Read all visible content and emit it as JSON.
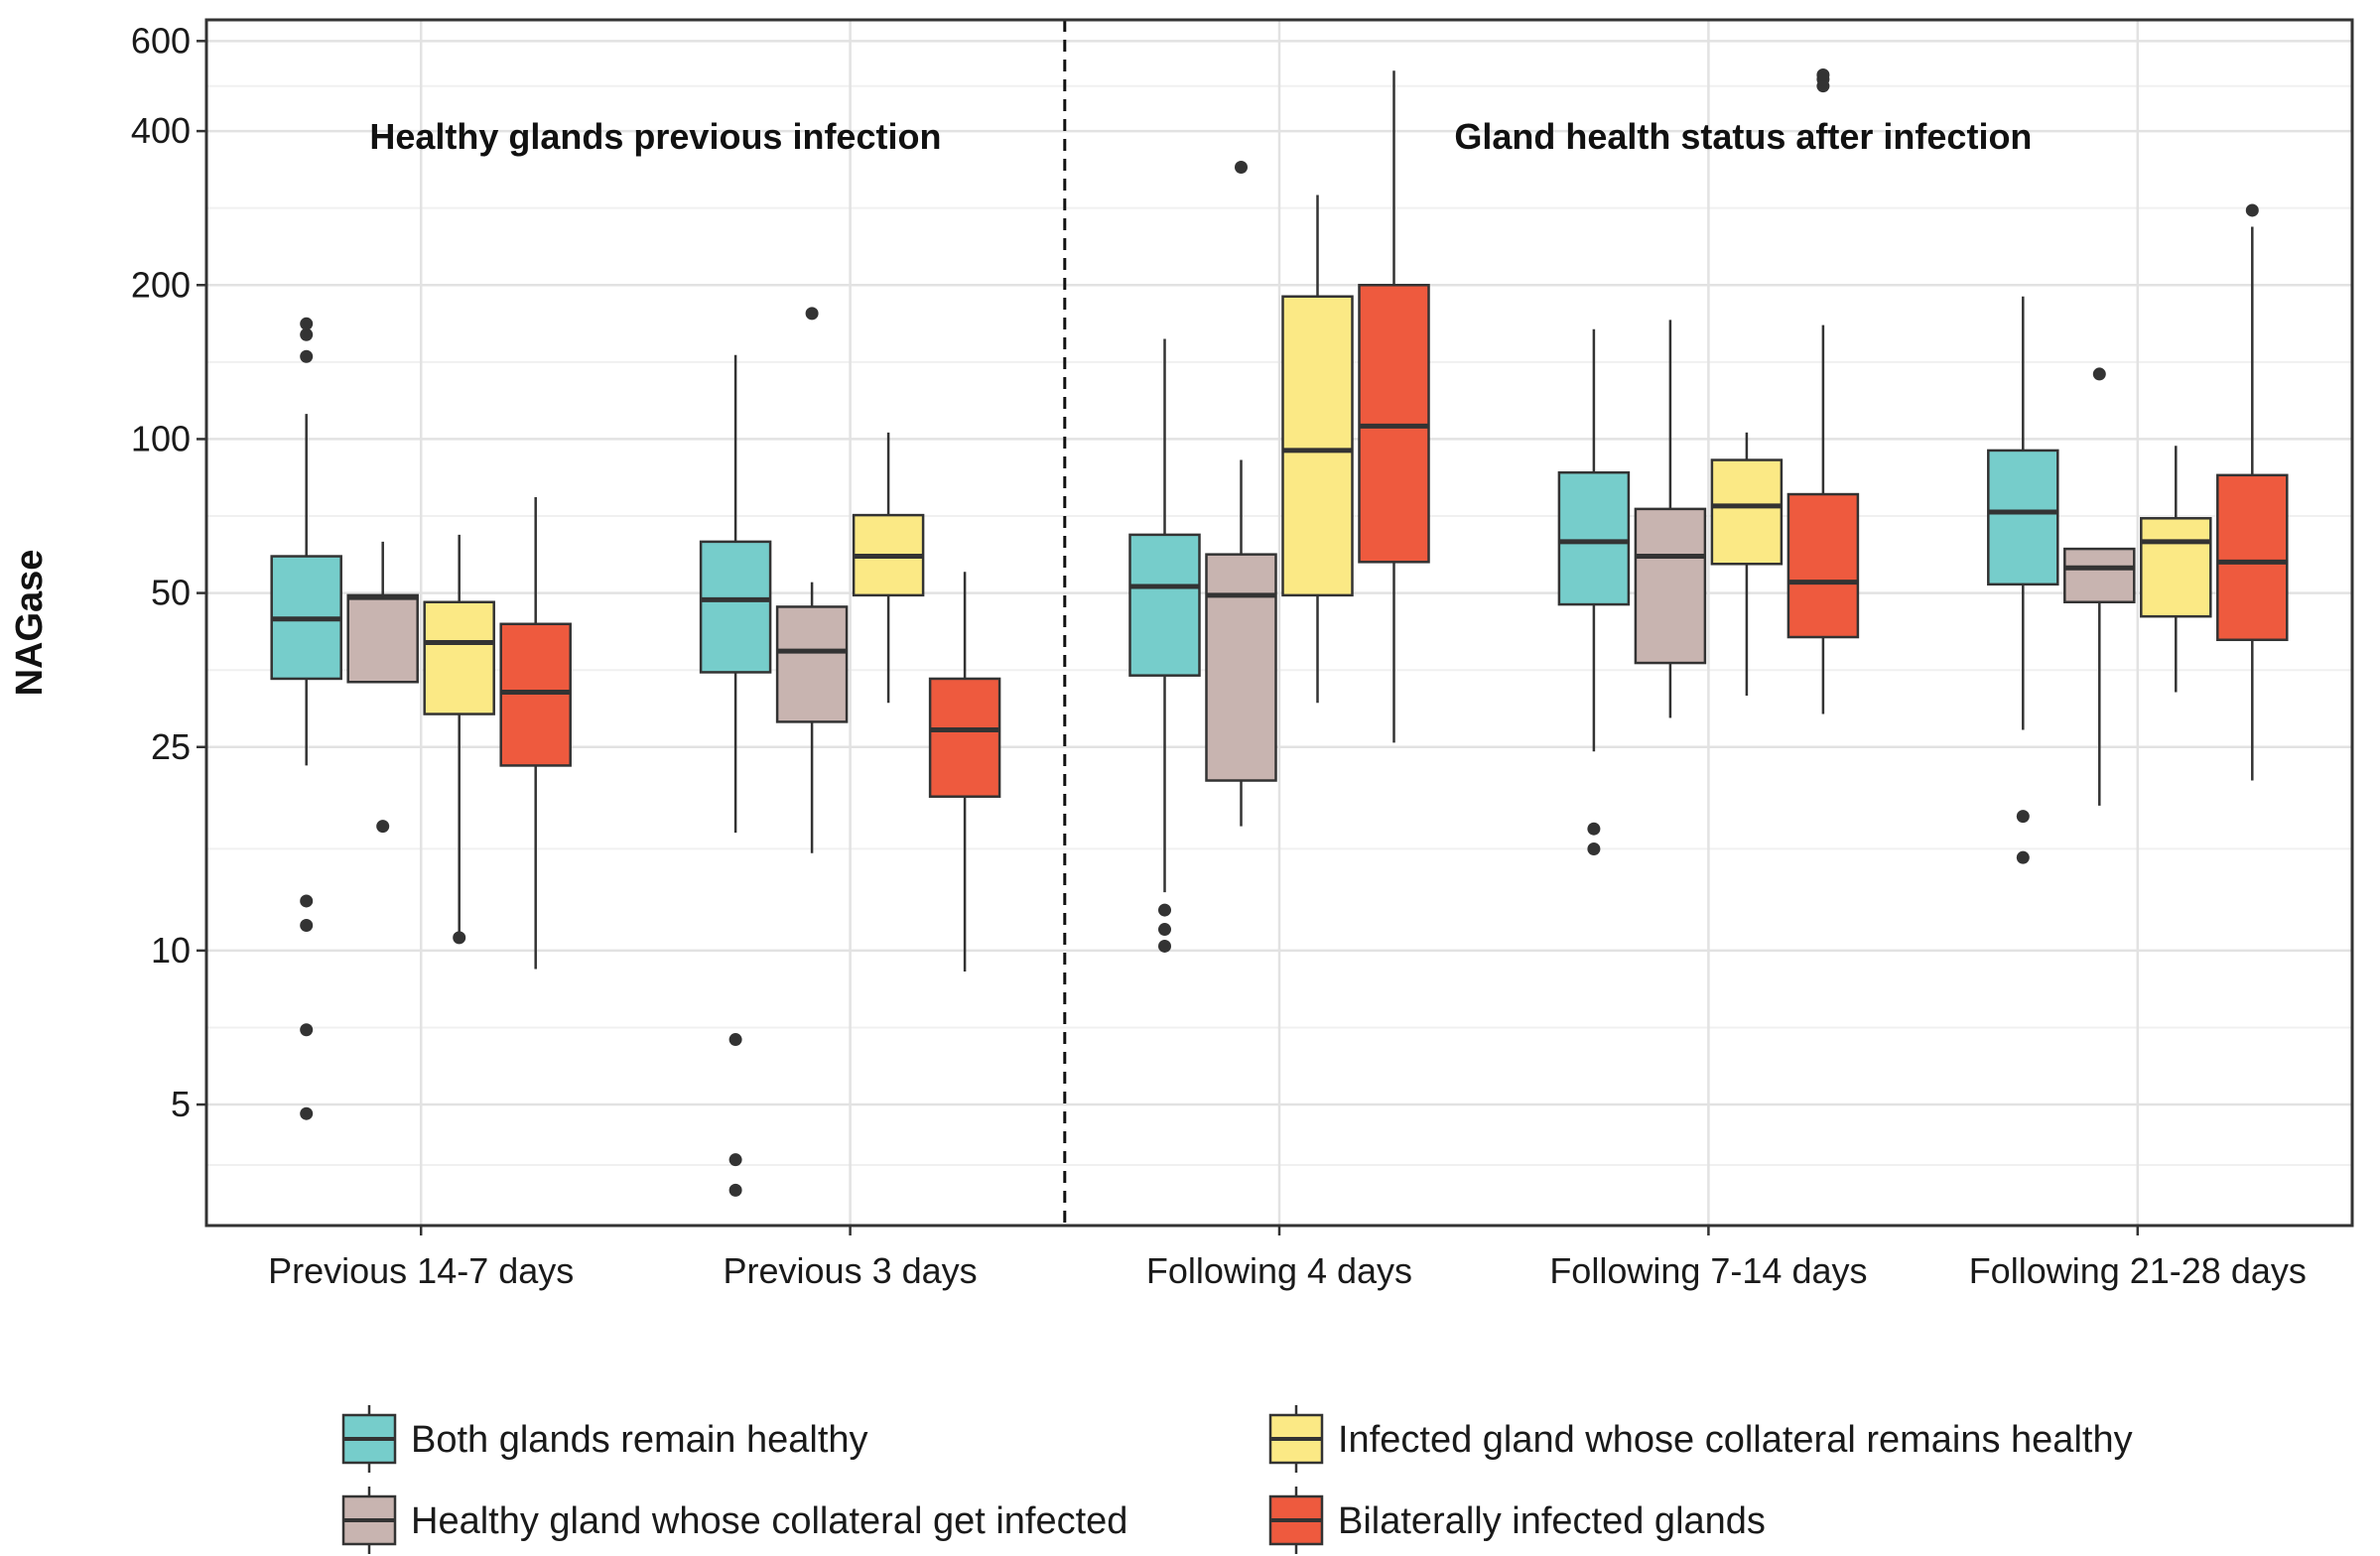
{
  "chart_data": {
    "type": "boxplot",
    "y_scale": "log",
    "ylabel": "NAGase",
    "xlabel": "",
    "ylim": [
      2.9,
      660
    ],
    "y_ticks": [
      5,
      10,
      25,
      50,
      100,
      200,
      400,
      600
    ],
    "grid": true,
    "categories": [
      "Previous 14-7 days",
      "Previous 3 days",
      "Following 4 days",
      "Following 7-14 days",
      "Following 21-28 days"
    ],
    "divider_after_category": 1,
    "annotations": [
      {
        "text": "Healthy glands previous infection",
        "side": "left"
      },
      {
        "text": "Gland health status after infection",
        "side": "right"
      }
    ],
    "legend_position": "bottom",
    "series": [
      {
        "name": "Both glands remain healthy",
        "color": "#76CDCB",
        "boxes": [
          {
            "whisker_low": 23,
            "q1": 34,
            "median": 44.5,
            "q3": 59,
            "whisker_high": 112,
            "outliers": [
              4.8,
              7,
              11.2,
              12.5,
              145,
              160,
              168
            ]
          },
          {
            "whisker_low": 17,
            "q1": 35,
            "median": 48.5,
            "q3": 63,
            "whisker_high": 146,
            "outliers": [
              3.4,
              3.9,
              6.7
            ]
          },
          {
            "whisker_low": 13,
            "q1": 34.5,
            "median": 51.5,
            "q3": 65,
            "whisker_high": 157,
            "outliers": [
              10.2,
              11,
              12
            ]
          },
          {
            "whisker_low": 24.5,
            "q1": 47.5,
            "median": 63,
            "q3": 86,
            "whisker_high": 164,
            "outliers": [
              15.8,
              17.3
            ]
          },
          {
            "whisker_low": 27,
            "q1": 52,
            "median": 72,
            "q3": 95,
            "whisker_high": 190,
            "outliers": [
              15.2,
              18.3
            ]
          }
        ]
      },
      {
        "name": "Healthy gland whose collateral get infected",
        "color": "#C8B4B0",
        "boxes": [
          {
            "whisker_low": 33.5,
            "q1": 33.5,
            "median": 49,
            "q3": 49.5,
            "whisker_high": 63,
            "outliers": [
              17.5
            ]
          },
          {
            "whisker_low": 15.5,
            "q1": 28,
            "median": 38.5,
            "q3": 47,
            "whisker_high": 52.5,
            "outliers": [
              176
            ]
          },
          {
            "whisker_low": 17.5,
            "q1": 21.5,
            "median": 49.5,
            "q3": 59.5,
            "whisker_high": 91,
            "outliers": [
              340
            ]
          },
          {
            "whisker_low": 28.5,
            "q1": 36.5,
            "median": 59,
            "q3": 73,
            "whisker_high": 171,
            "outliers": []
          },
          {
            "whisker_low": 19.2,
            "q1": 48,
            "median": 56,
            "q3": 61,
            "whisker_high": 61,
            "outliers": [
              134
            ]
          }
        ]
      },
      {
        "name": "Infected gland whose collateral remains healthy",
        "color": "#FBE985",
        "boxes": [
          {
            "whisker_low": 10.5,
            "q1": 29,
            "median": 40,
            "q3": 48,
            "whisker_high": 65,
            "outliers": [
              10.6
            ]
          },
          {
            "whisker_low": 30.5,
            "q1": 49.5,
            "median": 59,
            "q3": 71,
            "whisker_high": 103,
            "outliers": []
          },
          {
            "whisker_low": 30.5,
            "q1": 49.5,
            "median": 95,
            "q3": 190,
            "whisker_high": 300,
            "outliers": []
          },
          {
            "whisker_low": 31.5,
            "q1": 57,
            "median": 74,
            "q3": 91,
            "whisker_high": 103,
            "outliers": []
          },
          {
            "whisker_low": 32,
            "q1": 45,
            "median": 63,
            "q3": 70,
            "whisker_high": 97,
            "outliers": []
          }
        ]
      },
      {
        "name": "Bilaterally infected glands",
        "color": "#EE5A3E",
        "boxes": [
          {
            "whisker_low": 9.2,
            "q1": 23,
            "median": 32,
            "q3": 43.5,
            "whisker_high": 77,
            "outliers": []
          },
          {
            "whisker_low": 9.1,
            "q1": 20,
            "median": 27,
            "q3": 34,
            "whisker_high": 55,
            "outliers": []
          },
          {
            "whisker_low": 25.5,
            "q1": 57.5,
            "median": 106,
            "q3": 200,
            "whisker_high": 525,
            "outliers": []
          },
          {
            "whisker_low": 29,
            "q1": 41,
            "median": 52.5,
            "q3": 78,
            "whisker_high": 167,
            "outliers": [
              490,
              505,
              515
            ]
          },
          {
            "whisker_low": 21.5,
            "q1": 40.5,
            "median": 57.5,
            "q3": 85,
            "whisker_high": 260,
            "outliers": [
              280
            ]
          }
        ]
      }
    ]
  }
}
